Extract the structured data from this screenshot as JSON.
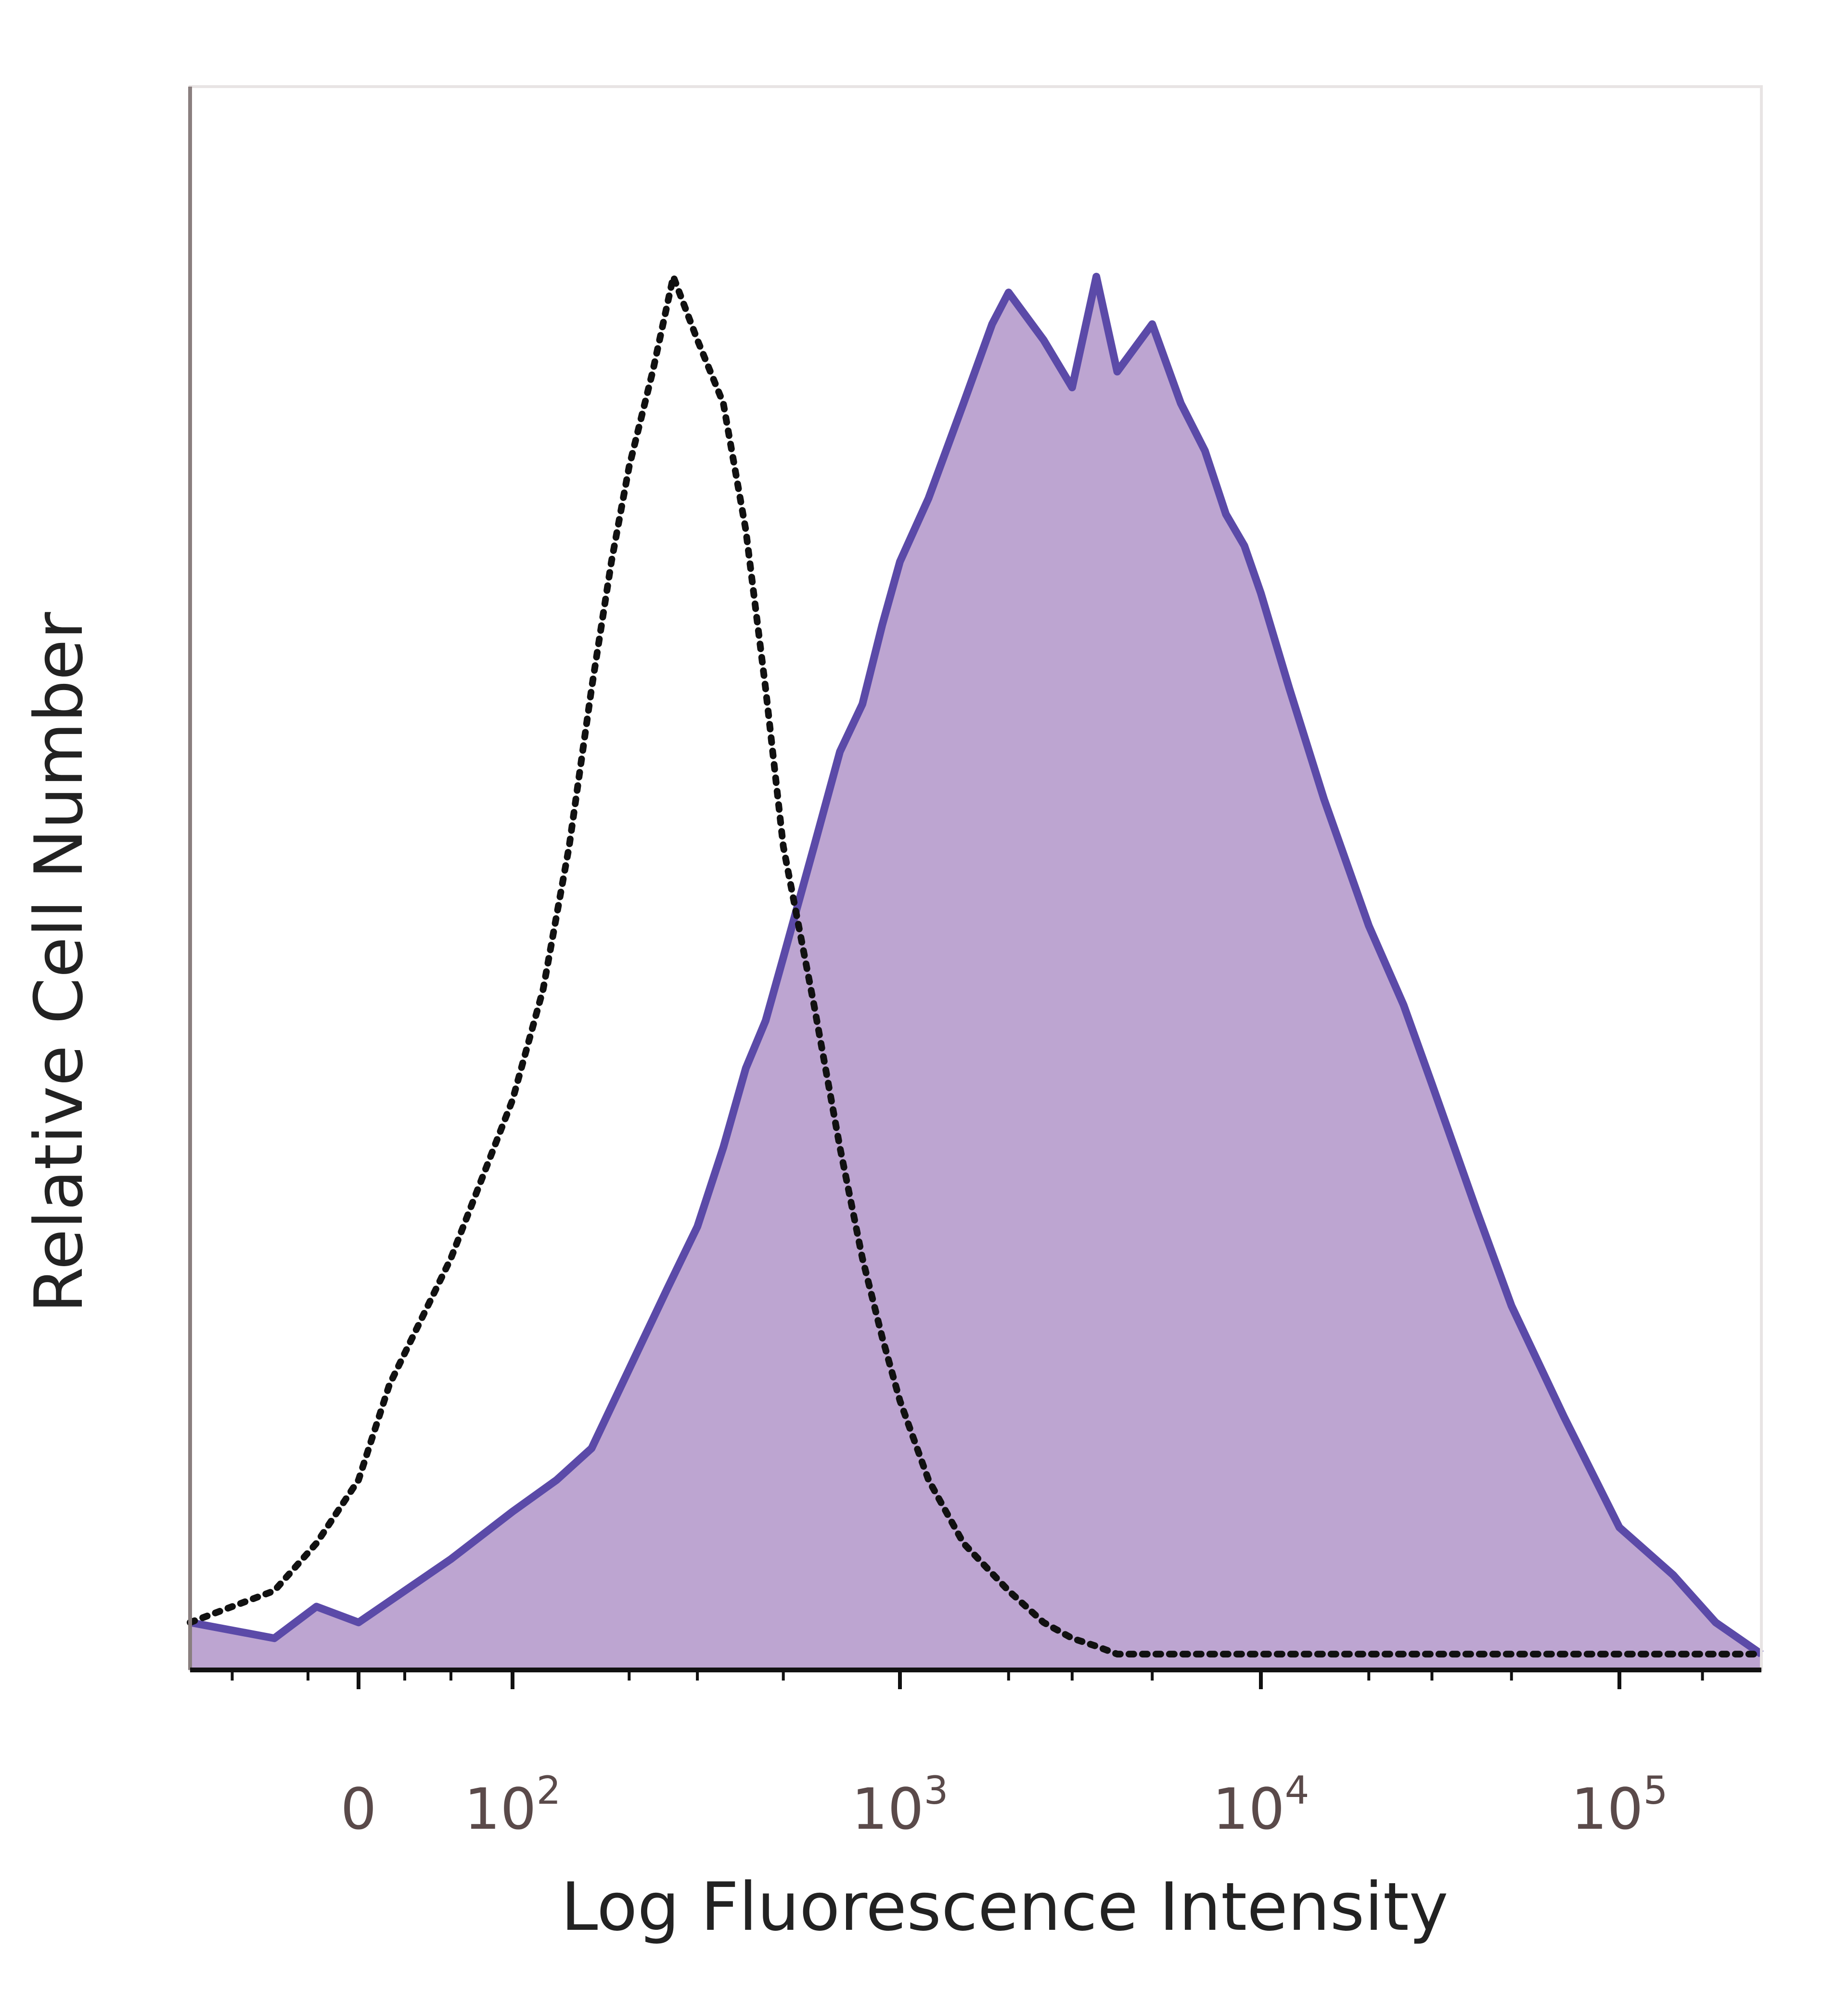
{
  "chart_data": {
    "type": "area",
    "title": "",
    "xlabel": "Log Fluorescence Intensity",
    "ylabel": "Relative Cell Number",
    "x_scale": "biexponential",
    "x_tick_labels": [
      {
        "base": "0",
        "exp": ""
      },
      {
        "base": "10",
        "exp": "2"
      },
      {
        "base": "10",
        "exp": "3"
      },
      {
        "base": "10",
        "exp": "4"
      },
      {
        "base": "10",
        "exp": "5"
      }
    ],
    "x_tick_values": [
      0,
      100,
      1000,
      10000,
      100000
    ],
    "xlim": [
      -200,
      200000
    ],
    "ylim": [
      0,
      100
    ],
    "grid": false,
    "legend": "none",
    "series": [
      {
        "style": "filled-solid",
        "color_line": "#5b4aa8",
        "color_fill": "#b9a0cf",
        "x": [
          -200,
          -100,
          -50,
          0,
          30,
          60,
          100,
          130,
          160,
          200,
          250,
          300,
          350,
          400,
          450,
          500,
          600,
          700,
          800,
          900,
          1000,
          1200,
          1500,
          1800,
          2000,
          2500,
          3000,
          3500,
          4000,
          5000,
          6000,
          7000,
          8000,
          9000,
          10000,
          12000,
          15000,
          20000,
          25000,
          30000,
          40000,
          50000,
          70000,
          100000,
          130000,
          160000,
          200000
        ],
        "y": [
          3,
          2,
          4,
          3,
          5,
          7,
          10,
          12,
          14,
          19,
          24,
          28,
          33,
          38,
          41,
          45,
          52,
          58,
          61,
          66,
          70,
          74,
          80,
          85,
          87,
          84,
          81,
          88,
          82,
          85,
          80,
          77,
          73,
          71,
          68,
          62,
          55,
          47,
          42,
          37,
          29,
          23,
          16,
          9,
          6,
          3,
          1
        ]
      },
      {
        "style": "dotted",
        "color_line": "#111111",
        "x": [
          -200,
          -100,
          -50,
          0,
          20,
          40,
          60,
          80,
          100,
          120,
          140,
          160,
          180,
          200,
          230,
          260,
          300,
          350,
          400,
          450,
          500,
          600,
          700,
          800,
          900,
          1000,
          1200,
          1500,
          2000,
          2500,
          3000,
          3500,
          4000,
          5000,
          7000,
          10000,
          20000,
          50000,
          100000,
          200000
        ],
        "y": [
          3,
          5,
          8,
          12,
          18,
          22,
          26,
          31,
          36,
          43,
          52,
          62,
          70,
          76,
          82,
          88,
          84,
          80,
          72,
          62,
          52,
          42,
          33,
          26,
          21,
          17,
          12,
          8,
          5,
          3,
          2,
          1.5,
          1,
          1,
          1,
          1,
          1,
          1,
          1,
          1
        ]
      }
    ]
  }
}
